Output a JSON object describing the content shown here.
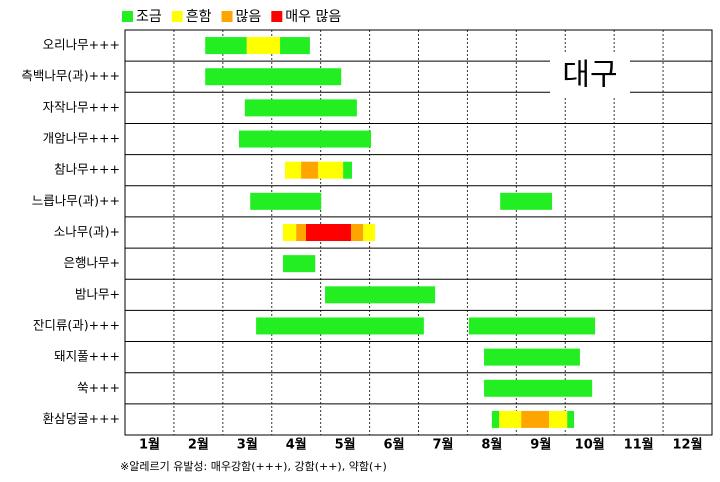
{
  "chart_data": {
    "type": "gantt",
    "legend": [
      {
        "name": "조금",
        "color": "#22ee22"
      },
      {
        "name": "흔함",
        "color": "#ffff00"
      },
      {
        "name": "많음",
        "color": "#ffa500"
      },
      {
        "name": "매우 많음",
        "color": "#ff0000"
      }
    ],
    "annotation": "대구",
    "footnote": "※알레르기 유발성: 매우강함(+++), 강함(++), 약함(+)",
    "months": [
      "1월",
      "2월",
      "3월",
      "4월",
      "5월",
      "6월",
      "7월",
      "8월",
      "9월",
      "10월",
      "11월",
      "12월"
    ],
    "xlim": [
      1,
      13
    ],
    "xticks": [
      2,
      3,
      4,
      5,
      6,
      7,
      8,
      9,
      10,
      11,
      12
    ],
    "grid": true,
    "rows": [
      {
        "label": "오리나무+++",
        "segments": [
          {
            "start": 2.64,
            "end": 3.49,
            "color": "#22ee22"
          },
          {
            "start": 3.49,
            "end": 4.17,
            "color": "#ffff00"
          },
          {
            "start": 4.17,
            "end": 4.78,
            "color": "#22ee22"
          }
        ]
      },
      {
        "label": "측백나무(과)+++",
        "segments": [
          {
            "start": 2.64,
            "end": 5.42,
            "color": "#22ee22"
          }
        ]
      },
      {
        "label": "자작나무+++",
        "segments": [
          {
            "start": 3.45,
            "end": 5.74,
            "color": "#22ee22"
          }
        ]
      },
      {
        "label": "개암나무+++",
        "segments": [
          {
            "start": 3.33,
            "end": 6.03,
            "color": "#22ee22"
          }
        ]
      },
      {
        "label": "참나무+++",
        "segments": [
          {
            "start": 4.27,
            "end": 4.6,
            "color": "#ffff00"
          },
          {
            "start": 4.6,
            "end": 4.95,
            "color": "#ffa500"
          },
          {
            "start": 4.95,
            "end": 5.46,
            "color": "#ffff00"
          },
          {
            "start": 5.46,
            "end": 5.64,
            "color": "#22ee22"
          }
        ]
      },
      {
        "label": "느릅나무(과)++",
        "segments": [
          {
            "start": 3.56,
            "end": 5.01,
            "color": "#22ee22"
          },
          {
            "start": 8.67,
            "end": 9.73,
            "color": "#22ee22"
          }
        ]
      },
      {
        "label": "소나무(과)+",
        "segments": [
          {
            "start": 4.23,
            "end": 4.5,
            "color": "#ffff00"
          },
          {
            "start": 4.5,
            "end": 4.7,
            "color": "#ffa500"
          },
          {
            "start": 4.7,
            "end": 5.62,
            "color": "#ff0000"
          },
          {
            "start": 5.62,
            "end": 5.87,
            "color": "#ffa500"
          },
          {
            "start": 5.87,
            "end": 6.11,
            "color": "#ffff00"
          }
        ]
      },
      {
        "label": "은행나무+",
        "segments": [
          {
            "start": 4.23,
            "end": 4.89,
            "color": "#22ee22"
          }
        ]
      },
      {
        "label": "밤나무+",
        "segments": [
          {
            "start": 5.09,
            "end": 7.34,
            "color": "#22ee22"
          }
        ]
      },
      {
        "label": "잔디류(과)+++",
        "segments": [
          {
            "start": 3.68,
            "end": 7.11,
            "color": "#22ee22"
          },
          {
            "start": 8.03,
            "end": 10.61,
            "color": "#22ee22"
          }
        ]
      },
      {
        "label": "돼지풀+++",
        "segments": [
          {
            "start": 8.34,
            "end": 10.3,
            "color": "#22ee22"
          }
        ]
      },
      {
        "label": "쑥+++",
        "segments": [
          {
            "start": 8.34,
            "end": 10.55,
            "color": "#22ee22"
          }
        ]
      },
      {
        "label": "환삼덩굴+++",
        "segments": [
          {
            "start": 8.5,
            "end": 8.65,
            "color": "#22ee22"
          },
          {
            "start": 8.65,
            "end": 9.1,
            "color": "#ffff00"
          },
          {
            "start": 9.1,
            "end": 9.67,
            "color": "#ffa500"
          },
          {
            "start": 9.67,
            "end": 10.04,
            "color": "#ffff00"
          },
          {
            "start": 10.04,
            "end": 10.18,
            "color": "#22ee22"
          }
        ]
      }
    ]
  }
}
